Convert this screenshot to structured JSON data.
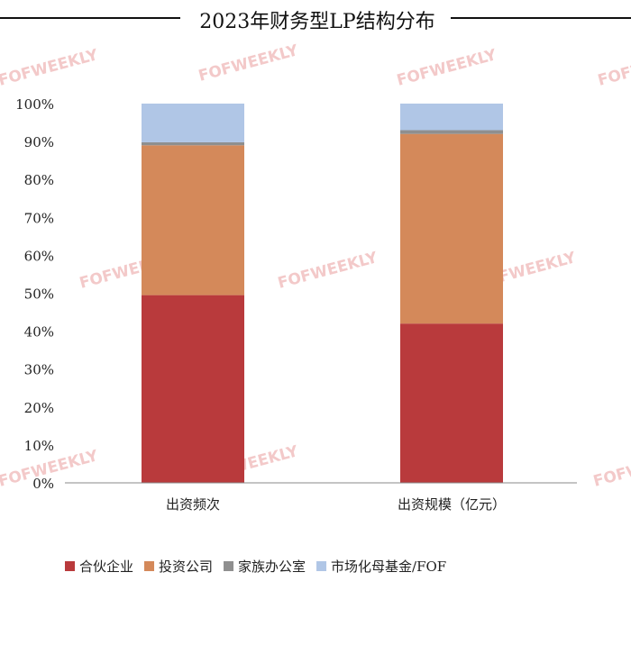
{
  "watermark": "FOFWEEKLY",
  "chart_data": {
    "type": "bar",
    "stacked": true,
    "percent_axis": true,
    "title": "2023年财务型LP结构分布",
    "xlabel": "",
    "ylabel": "",
    "ylim": [
      0,
      100
    ],
    "y_ticks": [
      "0%",
      "10%",
      "20%",
      "30%",
      "40%",
      "50%",
      "60%",
      "70%",
      "80%",
      "90%",
      "100%"
    ],
    "categories": [
      "出资频次",
      "出资规模（亿元）"
    ],
    "series": [
      {
        "name": "合伙企业",
        "color": "#b93a3c",
        "values": [
          49.5,
          42
        ]
      },
      {
        "name": "投资公司",
        "color": "#d4895a",
        "values": [
          39.5,
          50
        ]
      },
      {
        "name": "家族办公室",
        "color": "#8f8f8f",
        "values": [
          0.8,
          1
        ]
      },
      {
        "name": "市场化母基金/FOF",
        "color": "#b0c6e6",
        "values": [
          10.2,
          7
        ]
      }
    ],
    "legend_position": "bottom-left",
    "grid": false
  }
}
